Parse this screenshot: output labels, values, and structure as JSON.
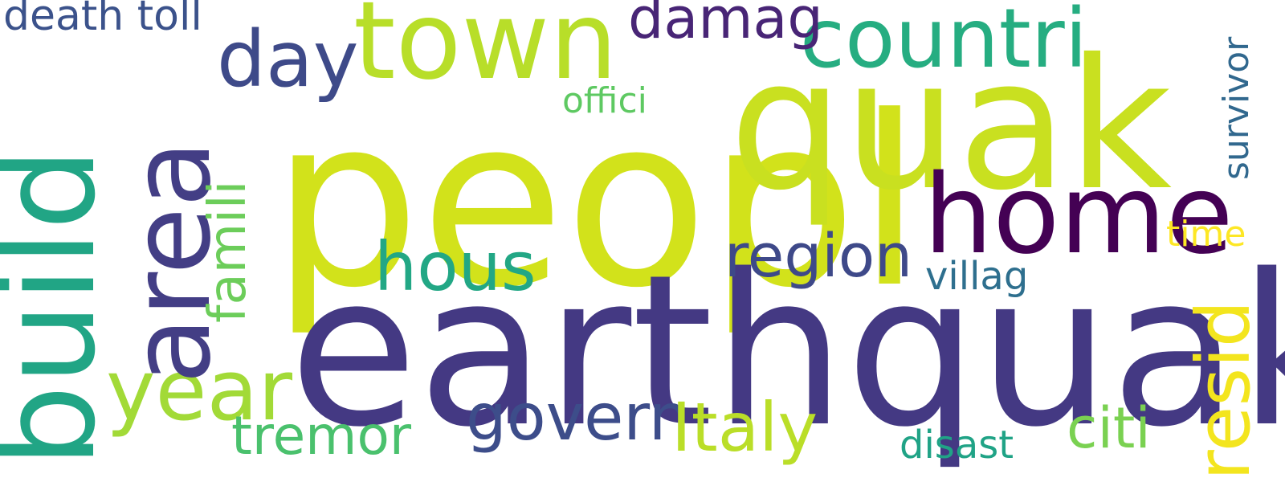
{
  "background_color": "#ffffff",
  "words": [
    {
      "id": "peopl",
      "text": "peopl",
      "color": "#d2e21b"
    },
    {
      "id": "quak",
      "text": "quak",
      "color": "#c9e020"
    },
    {
      "id": "earthquak",
      "text": "earthquak",
      "color": "#443983"
    },
    {
      "id": "build",
      "text": "build",
      "color": "#21a585"
    },
    {
      "id": "area",
      "text": "area",
      "color": "#433e85"
    },
    {
      "id": "town",
      "text": "town",
      "color": "#b8de29"
    },
    {
      "id": "home",
      "text": "home",
      "color": "#440154"
    },
    {
      "id": "countri",
      "text": "countri",
      "color": "#26ad81"
    },
    {
      "id": "day",
      "text": "day",
      "color": "#3e4a89"
    },
    {
      "id": "damag",
      "text": "damag",
      "color": "#482576"
    },
    {
      "id": "death-toll",
      "text": "death toll",
      "color": "#3b528b"
    },
    {
      "id": "hous",
      "text": "hous",
      "color": "#22a785"
    },
    {
      "id": "region",
      "text": "region",
      "color": "#3e4989"
    },
    {
      "id": "year",
      "text": "year",
      "color": "#a2da37"
    },
    {
      "id": "famili",
      "text": "famili",
      "color": "#6ccd5a"
    },
    {
      "id": "resid",
      "text": "resid",
      "color": "#f3e51e"
    },
    {
      "id": "govern",
      "text": "govern",
      "color": "#3d4d8a"
    },
    {
      "id": "Italy",
      "text": "Italy",
      "color": "#bade28"
    },
    {
      "id": "citi",
      "text": "citi",
      "color": "#7ad151"
    },
    {
      "id": "tremor",
      "text": "tremor",
      "color": "#4ac16d"
    },
    {
      "id": "offici",
      "text": "offici",
      "color": "#5ec962"
    },
    {
      "id": "survivor",
      "text": "survivor",
      "color": "#31688e"
    },
    {
      "id": "villag",
      "text": "villag",
      "color": "#2e6f8e"
    },
    {
      "id": "time",
      "text": "time",
      "color": "#fde725"
    },
    {
      "id": "disast",
      "text": "disast",
      "color": "#20a386"
    }
  ]
}
